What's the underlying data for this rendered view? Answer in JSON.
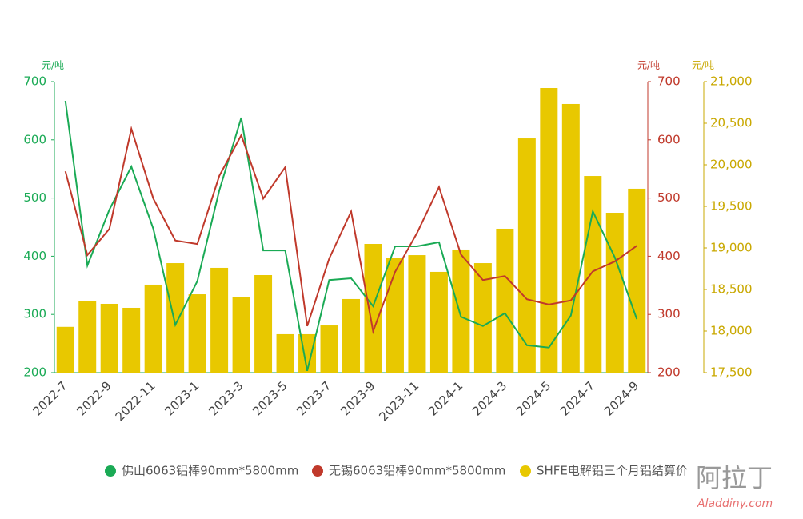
{
  "chart_data": {
    "type": "bar-line",
    "categories": [
      "2022-7",
      null,
      "2022-9",
      null,
      "2022-11",
      null,
      "2023-1",
      null,
      "2023-3",
      null,
      "2023-5",
      null,
      "2023-7",
      null,
      "2023-9",
      null,
      "2023-11",
      null,
      "2024-1",
      null,
      "2024-3",
      null,
      "2024-5",
      null,
      "2024-7",
      null,
      "2024-9"
    ],
    "y_label": "元/吨",
    "y2_label": "元/吨",
    "y3_label": "元/吨",
    "ylim": [
      200,
      700
    ],
    "yticks": [
      200,
      300,
      400,
      500,
      600,
      700
    ],
    "y2lim": [
      200,
      700
    ],
    "y2ticks": [
      200,
      300,
      400,
      500,
      600,
      700
    ],
    "y3lim": [
      17500,
      21000
    ],
    "y3ticks": [
      {
        "value": 17500,
        "label": "17,500"
      },
      {
        "value": 18000,
        "label": "18,000"
      },
      {
        "value": 18500,
        "label": "18,500"
      },
      {
        "value": 19000,
        "label": "19,000"
      },
      {
        "value": 19500,
        "label": "19,500"
      },
      {
        "value": 20000,
        "label": "20,000"
      },
      {
        "value": 20500,
        "label": "20,500"
      },
      {
        "value": 21000,
        "label": "21,000"
      }
    ],
    "series": [
      {
        "name": "佛山6063铝棒90mm*5800mm",
        "type": "line",
        "axis": "y",
        "color": "#1aaa55",
        "values": [
          667,
          384,
          480,
          554,
          447,
          282,
          357,
          513,
          638,
          410,
          410,
          203,
          359,
          362,
          314,
          417,
          417,
          424,
          296,
          280,
          302,
          247,
          243,
          298,
          477,
          398,
          292
        ]
      },
      {
        "name": "无锡6063铝棒90mm*5800mm",
        "type": "line",
        "axis": "y2",
        "color": "#c0392b",
        "values": [
          546,
          402,
          447,
          619,
          499,
          427,
          421,
          538,
          608,
          499,
          553,
          280,
          396,
          477,
          271,
          373,
          440,
          519,
          403,
          359,
          366,
          326,
          317,
          324,
          374,
          391,
          418
        ]
      },
      {
        "name": "SHFE电解铝三个月铝结算价",
        "type": "bar",
        "axis": "y3",
        "color": "#e8c800",
        "values": [
          18050,
          18365,
          18327,
          18279,
          18558,
          18817,
          18442,
          18760,
          18404,
          18673,
          17962,
          17962,
          18067,
          18385,
          19048,
          18875,
          18913,
          18712,
          18981,
          18817,
          19231,
          20317,
          20923,
          20731,
          19865,
          19423,
          19712
        ]
      }
    ],
    "logo": "阿拉丁",
    "logo_url": "Aladdiny.com"
  }
}
